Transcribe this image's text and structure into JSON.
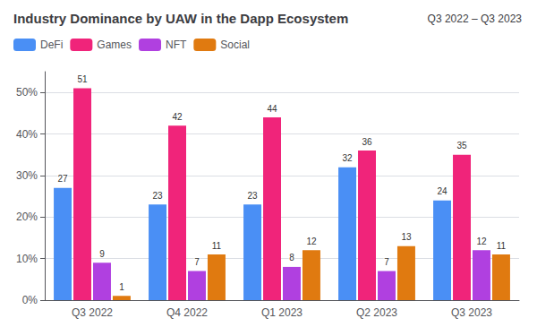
{
  "chart_data": {
    "type": "bar",
    "title": "Industry Dominance by UAW in the Dapp Ecosystem",
    "subtitle": "Q3 2022 – Q3 2023",
    "categories": [
      "Q3 2022",
      "Q4 2022",
      "Q1 2023",
      "Q2 2023",
      "Q3 2023"
    ],
    "series": [
      {
        "name": "DeFi",
        "color": "#4a8ff5",
        "values": [
          27,
          23,
          23,
          32,
          24
        ]
      },
      {
        "name": "Games",
        "color": "#f0247a",
        "values": [
          51,
          42,
          44,
          36,
          35
        ]
      },
      {
        "name": "NFT",
        "color": "#b040e0",
        "values": [
          9,
          7,
          8,
          7,
          12
        ]
      },
      {
        "name": "Social",
        "color": "#e07a10",
        "values": [
          1,
          11,
          12,
          13,
          11
        ]
      }
    ],
    "ylim": [
      0,
      55
    ],
    "yticks": [
      {
        "value": 0,
        "label": "0%"
      },
      {
        "value": 10,
        "label": "10%"
      },
      {
        "value": 20,
        "label": "20%"
      },
      {
        "value": 30,
        "label": "30%"
      },
      {
        "value": 40,
        "label": "40%"
      },
      {
        "value": 50,
        "label": "50%"
      }
    ],
    "grid": true,
    "legend": "top",
    "data_labels": true
  }
}
